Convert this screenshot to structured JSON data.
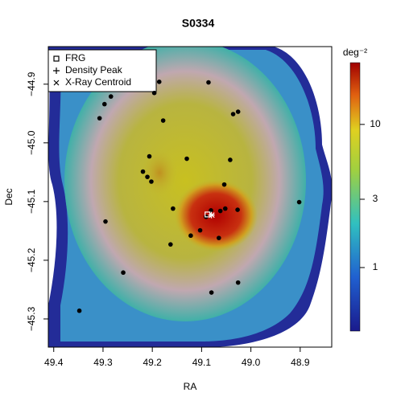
{
  "chart_data": {
    "type": "scatter",
    "title": "S0334",
    "x_label": "RA",
    "y_label": "Dec",
    "xlim": [
      49.411,
      48.836
    ],
    "ylim": [
      -45.348,
      -44.836
    ],
    "xticks": [
      49.4,
      49.3,
      49.2,
      49.1,
      49.0,
      48.9
    ],
    "yticks": [
      -44.9,
      -45.0,
      -45.1,
      -45.2,
      -45.3
    ],
    "x_tick_labels": [
      "49.4",
      "49.3",
      "49.2",
      "49.1",
      "49.0",
      "48.9"
    ],
    "y_tick_labels": [
      "−44.9",
      "−45.0",
      "−45.1",
      "−45.2",
      "−45.3"
    ],
    "point_color": "#000000",
    "x": [
      49.186,
      49.086,
      49.284,
      49.297,
      49.196,
      49.026,
      49.036,
      49.307,
      49.178,
      49.206,
      49.13,
      49.042,
      49.219,
      49.21,
      49.202,
      49.054,
      49.158,
      49.081,
      49.052,
      49.027,
      49.062,
      49.091,
      49.103,
      49.122,
      49.065,
      49.295,
      49.163,
      49.259,
      49.026,
      49.08,
      49.348,
      48.902
    ],
    "y": [
      -44.896,
      -44.897,
      -44.921,
      -44.934,
      -44.915,
      -44.947,
      -44.951,
      -44.958,
      -44.962,
      -45.023,
      -45.027,
      -45.029,
      -45.049,
      -45.058,
      -45.066,
      -45.071,
      -45.112,
      -45.115,
      -45.112,
      -45.114,
      -45.116,
      -45.126,
      -45.149,
      -45.158,
      -45.162,
      -45.134,
      -45.173,
      -45.221,
      -45.238,
      -45.255,
      -45.286,
      -45.101
    ],
    "markers": [
      {
        "name": "FRG",
        "symbol": "square",
        "x": 49.088,
        "y": -45.122
      },
      {
        "name": "Density Peak",
        "symbol": "plus",
        "x": 49.08,
        "y": -45.123
      },
      {
        "name": "X-Ray Centroid",
        "symbol": "cross",
        "x": 49.079,
        "y": -45.123
      }
    ],
    "colorbar": {
      "label": "deg⁻²",
      "log_scale": true,
      "lim": [
        0.36,
        27
      ],
      "ticks": [
        1,
        3,
        10
      ]
    }
  }
}
